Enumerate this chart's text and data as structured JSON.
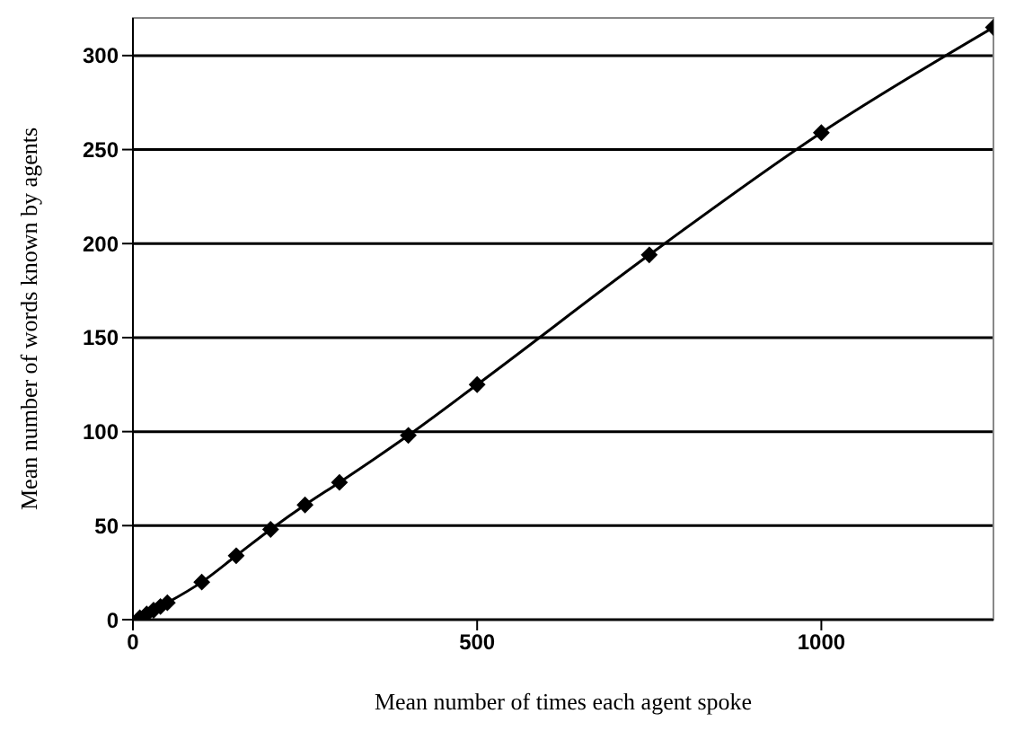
{
  "chart_data": {
    "type": "line",
    "xlabel": "Mean  number of times each agent spoke",
    "ylabel": "Mean number of words known by agents",
    "x": [
      10,
      20,
      30,
      40,
      50,
      100,
      150,
      200,
      250,
      300,
      400,
      500,
      750,
      1000,
      1250
    ],
    "series": [
      {
        "color": "#000000",
        "values": [
          1,
          3,
          5,
          7,
          9,
          20,
          34,
          48,
          61,
          73,
          98,
          125,
          194,
          259,
          315
        ]
      }
    ],
    "xlim": [
      0,
      1250
    ],
    "xticks": [
      0,
      500,
      1000
    ],
    "ylim": [
      0,
      320
    ],
    "yticks": [
      0,
      50,
      100,
      150,
      200,
      250,
      300
    ],
    "grid": "y",
    "marker": "diamond",
    "line_style": "solid"
  }
}
